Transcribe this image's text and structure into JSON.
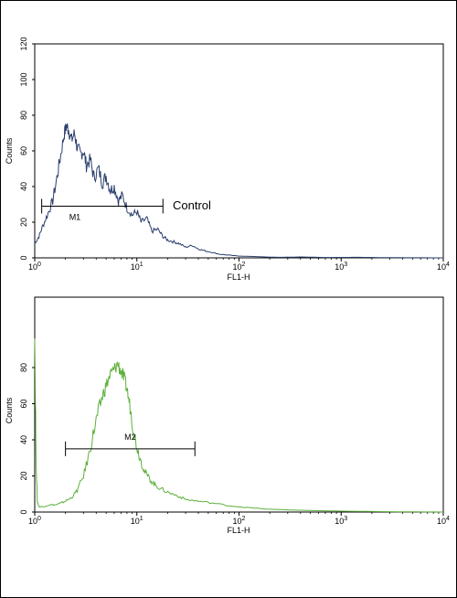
{
  "chart_data": [
    {
      "type": "line",
      "title": "",
      "xlabel": "FL1-H",
      "ylabel": "Counts",
      "x_scale": "log",
      "xlim": [
        1,
        10000
      ],
      "ylim": [
        0,
        120
      ],
      "y_ticks": [
        "0",
        "20",
        "40",
        "60",
        "80",
        "100",
        "120"
      ],
      "x_ticks": [
        {
          "base": "10",
          "exp": "0"
        },
        {
          "base": "10",
          "exp": "1"
        },
        {
          "base": "10",
          "exp": "2"
        },
        {
          "base": "10",
          "exp": "3"
        },
        {
          "base": "10",
          "exp": "4"
        }
      ],
      "color": "#2b3f6e",
      "series": [
        {
          "x": [
            1.0,
            1.1,
            1.2,
            1.35,
            1.5,
            1.65,
            1.8,
            1.95,
            2.05,
            2.15,
            2.3,
            2.45,
            2.6,
            2.8,
            3.0,
            3.2,
            3.5,
            3.8,
            4.2,
            4.6,
            5.0,
            5.5,
            6.0,
            6.6,
            7.2,
            8.0,
            9.0,
            10.0,
            11.0,
            12.5,
            14.0,
            16.0,
            18.0,
            20.0,
            23.0,
            26.0,
            30.0,
            35.0,
            40.0,
            46.0,
            55.0,
            65.0,
            80.0,
            100.0,
            130.0,
            180.0,
            250.0,
            400.0,
            700.0,
            1500.0,
            3000.0,
            10000.0
          ],
          "y": [
            8,
            12,
            18,
            25,
            32,
            45,
            58,
            70,
            74,
            72,
            66,
            70,
            62,
            58,
            60,
            52,
            55,
            45,
            50,
            42,
            46,
            38,
            40,
            32,
            35,
            28,
            24,
            26,
            20,
            22,
            15,
            16,
            12,
            10,
            9,
            8,
            6,
            7,
            5,
            4,
            3,
            2,
            1.5,
            1,
            0.8,
            0.5,
            0.3,
            0.5,
            0.2,
            0.3,
            0.1,
            0
          ]
        }
      ],
      "marker": {
        "label": "M1",
        "x_start": 1.17,
        "x_end": 18.0,
        "y": 29
      },
      "annotation": {
        "text": "Control"
      }
    },
    {
      "type": "line",
      "title": "",
      "xlabel": "FL1-H",
      "ylabel": "Counts",
      "x_scale": "log",
      "xlim": [
        1,
        10000
      ],
      "ylim": [
        0,
        100
      ],
      "y_ticks": [
        "0",
        "20",
        "40",
        "60",
        "80"
      ],
      "x_ticks": [
        {
          "base": "10",
          "exp": "0"
        },
        {
          "base": "10",
          "exp": "1"
        },
        {
          "base": "10",
          "exp": "2"
        },
        {
          "base": "10",
          "exp": "3"
        },
        {
          "base": "10",
          "exp": "4"
        }
      ],
      "color": "#5cb03a",
      "series": [
        {
          "x": [
            1.0,
            1.03,
            1.06,
            1.1,
            1.2,
            1.4,
            1.6,
            1.8,
            2.0,
            2.3,
            2.6,
            3.0,
            3.4,
            3.8,
            4.2,
            4.6,
            5.0,
            5.5,
            6.0,
            6.5,
            7.0,
            7.5,
            8.0,
            8.6,
            9.2,
            10.0,
            11.0,
            12.0,
            13.5,
            15.0,
            17.0,
            20.0,
            25.0,
            30.0,
            40.0,
            55.0,
            80.0,
            120.0,
            200.0,
            400.0,
            1000.0,
            3000.0,
            10000.0
          ],
          "y": [
            100,
            30,
            6,
            3,
            3,
            4,
            4,
            5,
            6,
            8,
            12,
            20,
            32,
            45,
            56,
            64,
            70,
            76,
            79,
            82,
            78,
            74,
            68,
            58,
            46,
            36,
            28,
            22,
            18,
            15,
            13,
            11,
            9,
            7,
            6,
            5,
            3.5,
            2.5,
            1.5,
            1,
            0.5,
            0.2,
            0
          ]
        }
      ],
      "marker": {
        "label": "M2",
        "x_start": 2.0,
        "x_end": 37.0,
        "y": 35
      }
    }
  ]
}
